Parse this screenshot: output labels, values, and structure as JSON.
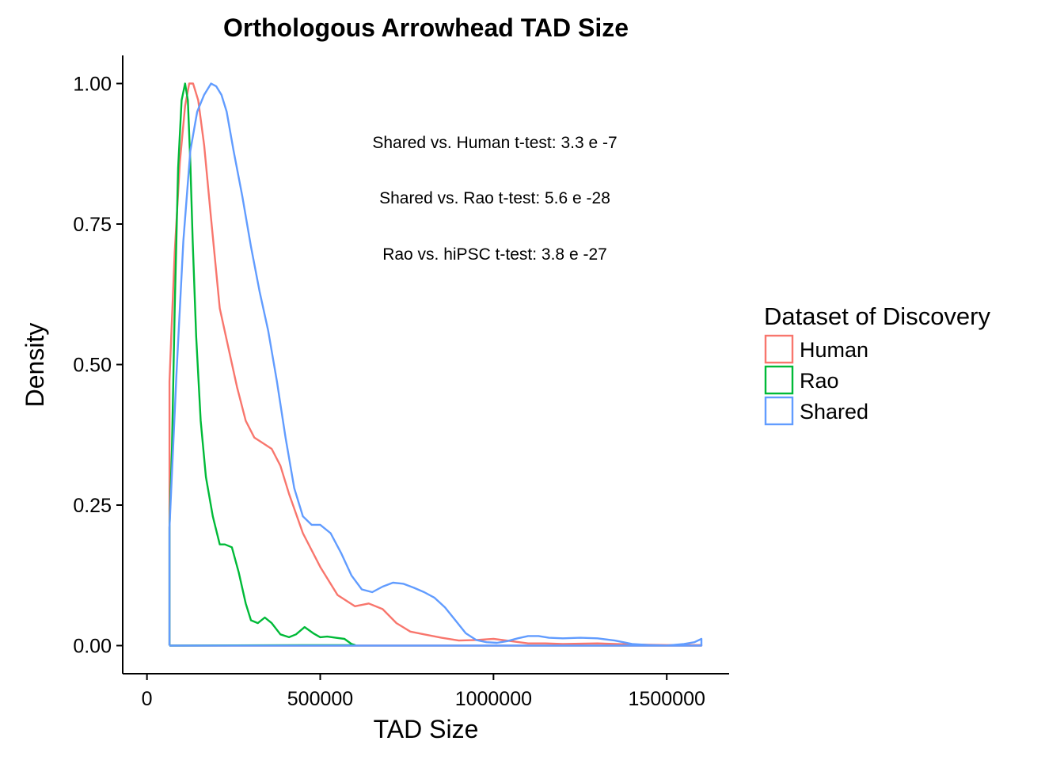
{
  "chart_data": {
    "type": "line",
    "subtype": "density",
    "title": "Orthologous Arrowhead TAD Size",
    "xlabel": "TAD Size",
    "ylabel": "Density",
    "xlim": [
      -70000,
      1680000
    ],
    "ylim": [
      -0.05,
      1.05
    ],
    "x_ticks": [
      0,
      500000,
      1000000,
      1500000
    ],
    "x_tick_labels": [
      "0",
      "500000",
      "1000000",
      "1500000"
    ],
    "y_ticks": [
      0,
      0.25,
      0.5,
      0.75,
      1.0
    ],
    "y_tick_labels": [
      "0.00",
      "0.25",
      "0.50",
      "0.75",
      "1.00"
    ],
    "grid": false,
    "legend": {
      "title": "Dataset of Discovery",
      "position": "right",
      "entries": [
        "Human",
        "Rao",
        "Shared"
      ]
    },
    "annotations": [
      "Shared vs. Human t-test: 3.3 e -7",
      "Shared vs. Rao t-test: 5.6 e -28",
      "Rao vs. hiPSC t-test: 3.8 e -27"
    ],
    "series": [
      {
        "name": "Human",
        "color": "#F8766D",
        "x": [
          65000,
          65000,
          70000,
          80000,
          95000,
          110000,
          122000,
          133000,
          148000,
          165000,
          185000,
          210000,
          235000,
          260000,
          285000,
          310000,
          335000,
          360000,
          385000,
          410000,
          450000,
          500000,
          550000,
          600000,
          640000,
          680000,
          720000,
          760000,
          800000,
          850000,
          900000,
          950000,
          1000000,
          1050000,
          1100000,
          1150000,
          1200000,
          1300000,
          1400000,
          1500000,
          1600000,
          1600000,
          65000
        ],
        "y": [
          0.0,
          0.47,
          0.55,
          0.7,
          0.86,
          0.96,
          1.0,
          1.0,
          0.97,
          0.89,
          0.76,
          0.6,
          0.53,
          0.46,
          0.4,
          0.37,
          0.36,
          0.35,
          0.32,
          0.27,
          0.2,
          0.14,
          0.09,
          0.07,
          0.075,
          0.065,
          0.04,
          0.025,
          0.02,
          0.014,
          0.009,
          0.01,
          0.012,
          0.008,
          0.004,
          0.004,
          0.003,
          0.004,
          0.002,
          0.001,
          0.001,
          0.0,
          0.0
        ]
      },
      {
        "name": "Rao",
        "color": "#00BA38",
        "x": [
          65000,
          65000,
          72000,
          80000,
          90000,
          100000,
          110000,
          118000,
          125000,
          132000,
          142000,
          155000,
          170000,
          190000,
          210000,
          225000,
          245000,
          265000,
          285000,
          300000,
          320000,
          340000,
          360000,
          385000,
          410000,
          430000,
          455000,
          480000,
          500000,
          520000,
          545000,
          570000,
          590000,
          600000,
          65000
        ],
        "y": [
          0.0,
          0.21,
          0.35,
          0.6,
          0.85,
          0.97,
          1.0,
          0.97,
          0.86,
          0.72,
          0.55,
          0.4,
          0.3,
          0.23,
          0.18,
          0.18,
          0.175,
          0.13,
          0.075,
          0.045,
          0.04,
          0.05,
          0.04,
          0.02,
          0.015,
          0.02,
          0.033,
          0.022,
          0.015,
          0.016,
          0.014,
          0.012,
          0.003,
          0.001,
          0.0
        ]
      },
      {
        "name": "Shared",
        "color": "#619CFF",
        "x": [
          65000,
          65000,
          85000,
          105000,
          125000,
          145000,
          165000,
          185000,
          200000,
          215000,
          230000,
          250000,
          275000,
          300000,
          325000,
          350000,
          375000,
          400000,
          425000,
          450000,
          475000,
          500000,
          530000,
          560000,
          590000,
          620000,
          650000,
          680000,
          710000,
          740000,
          770000,
          800000,
          830000,
          860000,
          890000,
          920000,
          950000,
          980000,
          1010000,
          1040000,
          1070000,
          1100000,
          1130000,
          1160000,
          1200000,
          1250000,
          1300000,
          1350000,
          1400000,
          1450000,
          1500000,
          1550000,
          1580000,
          1600000,
          1600000,
          65000
        ],
        "y": [
          0.0,
          0.21,
          0.48,
          0.72,
          0.88,
          0.95,
          0.98,
          1.0,
          0.995,
          0.98,
          0.95,
          0.88,
          0.8,
          0.71,
          0.63,
          0.56,
          0.47,
          0.37,
          0.28,
          0.23,
          0.215,
          0.215,
          0.2,
          0.165,
          0.125,
          0.1,
          0.095,
          0.105,
          0.112,
          0.11,
          0.103,
          0.095,
          0.085,
          0.068,
          0.045,
          0.022,
          0.01,
          0.006,
          0.005,
          0.008,
          0.013,
          0.017,
          0.017,
          0.014,
          0.013,
          0.014,
          0.013,
          0.009,
          0.003,
          0.001,
          0.0,
          0.003,
          0.006,
          0.012,
          0.0,
          0.0
        ]
      }
    ]
  }
}
